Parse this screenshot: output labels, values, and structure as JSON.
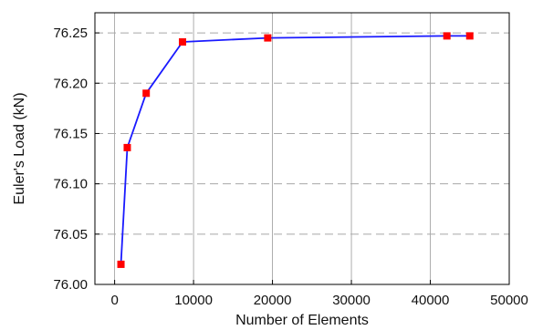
{
  "chart_data": {
    "type": "line",
    "title": "",
    "xlabel": "Number of Elements",
    "ylabel": "Euler's Load (kN)",
    "xlim": [
      -2500,
      50000
    ],
    "ylim": [
      76.0,
      76.27
    ],
    "x_ticks": [
      0,
      10000,
      20000,
      30000,
      40000,
      50000
    ],
    "x_tick_labels": [
      "0",
      "10000",
      "20000",
      "30000",
      "40000",
      "50000"
    ],
    "y_ticks": [
      76.0,
      76.05,
      76.1,
      76.15,
      76.2,
      76.25
    ],
    "y_tick_labels": [
      "76.00",
      "76.05",
      "76.10",
      "76.15",
      "76.20",
      "76.25"
    ],
    "grid": true,
    "legend": "none",
    "series": [
      {
        "x": [
          800,
          1600,
          4000,
          8600,
          19400,
          42100,
          45000
        ],
        "y": [
          76.02,
          76.136,
          76.19,
          76.241,
          76.245,
          76.247,
          76.247
        ],
        "line_color": "#1a1aff",
        "marker_color": "#ff0000",
        "marker": "square"
      }
    ]
  }
}
